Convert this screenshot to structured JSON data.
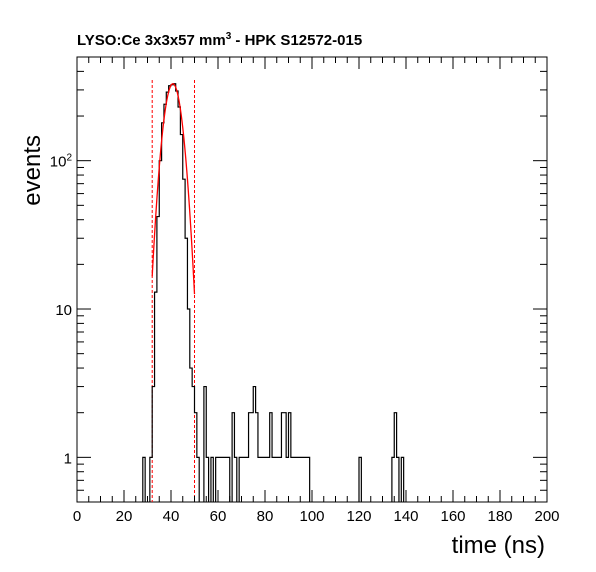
{
  "chart_data": {
    "type": "histogram",
    "title": {
      "prefix": "LYSO:Ce 3x3x57 mm",
      "superscript": "3",
      "suffix": " - HPK S12572-015"
    },
    "xlabel": "time (ns)",
    "ylabel": "events",
    "xlim": [
      0,
      200
    ],
    "ylim": [
      0.5,
      500
    ],
    "y_scale": "log",
    "x_ticks": [
      "0",
      "20",
      "40",
      "60",
      "80",
      "100",
      "120",
      "140",
      "160",
      "180",
      "200"
    ],
    "y_ticks": [
      {
        "value": 1,
        "label": "1"
      },
      {
        "value": 10,
        "label": "10"
      },
      {
        "value": 100,
        "base": "10",
        "exp": "2"
      }
    ],
    "bin_width": 1,
    "bins": [
      {
        "x": 28,
        "y": 1
      },
      {
        "x": 31,
        "y": 1
      },
      {
        "x": 32,
        "y": 3
      },
      {
        "x": 33,
        "y": 13
      },
      {
        "x": 34,
        "y": 42
      },
      {
        "x": 35,
        "y": 100
      },
      {
        "x": 36,
        "y": 180
      },
      {
        "x": 37,
        "y": 240
      },
      {
        "x": 38,
        "y": 290
      },
      {
        "x": 39,
        "y": 320
      },
      {
        "x": 40,
        "y": 325
      },
      {
        "x": 41,
        "y": 330
      },
      {
        "x": 42,
        "y": 295
      },
      {
        "x": 43,
        "y": 230
      },
      {
        "x": 44,
        "y": 150
      },
      {
        "x": 45,
        "y": 75
      },
      {
        "x": 46,
        "y": 30
      },
      {
        "x": 47,
        "y": 10
      },
      {
        "x": 48,
        "y": 4
      },
      {
        "x": 49,
        "y": 3
      },
      {
        "x": 50,
        "y": 2
      },
      {
        "x": 51,
        "y": 1
      },
      {
        "x": 54,
        "y": 3
      },
      {
        "x": 55,
        "y": 1
      },
      {
        "x": 57,
        "y": 1
      },
      {
        "x": 59,
        "y": 1
      },
      {
        "x": 60,
        "y": 1
      },
      {
        "x": 61,
        "y": 1
      },
      {
        "x": 62,
        "y": 1
      },
      {
        "x": 63,
        "y": 1
      },
      {
        "x": 64,
        "y": 1
      },
      {
        "x": 66,
        "y": 2
      },
      {
        "x": 67,
        "y": 1
      },
      {
        "x": 69,
        "y": 1
      },
      {
        "x": 70,
        "y": 1
      },
      {
        "x": 71,
        "y": 1
      },
      {
        "x": 72,
        "y": 1
      },
      {
        "x": 73,
        "y": 2
      },
      {
        "x": 74,
        "y": 2
      },
      {
        "x": 75,
        "y": 3
      },
      {
        "x": 76,
        "y": 2
      },
      {
        "x": 77,
        "y": 1
      },
      {
        "x": 78,
        "y": 1
      },
      {
        "x": 79,
        "y": 1
      },
      {
        "x": 80,
        "y": 1
      },
      {
        "x": 81,
        "y": 1
      },
      {
        "x": 82,
        "y": 2
      },
      {
        "x": 83,
        "y": 1
      },
      {
        "x": 84,
        "y": 1
      },
      {
        "x": 85,
        "y": 1
      },
      {
        "x": 86,
        "y": 1
      },
      {
        "x": 87,
        "y": 2
      },
      {
        "x": 88,
        "y": 2
      },
      {
        "x": 89,
        "y": 1
      },
      {
        "x": 90,
        "y": 2
      },
      {
        "x": 91,
        "y": 1
      },
      {
        "x": 92,
        "y": 1
      },
      {
        "x": 93,
        "y": 1
      },
      {
        "x": 94,
        "y": 1
      },
      {
        "x": 95,
        "y": 1
      },
      {
        "x": 96,
        "y": 1
      },
      {
        "x": 97,
        "y": 1
      },
      {
        "x": 98,
        "y": 1
      },
      {
        "x": 120,
        "y": 1
      },
      {
        "x": 134,
        "y": 1
      },
      {
        "x": 135,
        "y": 2
      },
      {
        "x": 136,
        "y": 1
      },
      {
        "x": 138,
        "y": 1
      }
    ],
    "fit": {
      "function": "gaussian",
      "amplitude": 330,
      "mean": 40.8,
      "sigma": 3.6,
      "range": [
        32,
        50
      ],
      "color": "#ff0000"
    },
    "fit_range_lines": [
      32,
      50
    ],
    "histogram_color": "#000000",
    "fit_line_color": "#ff0000",
    "range_line_color": "#ff0000"
  }
}
